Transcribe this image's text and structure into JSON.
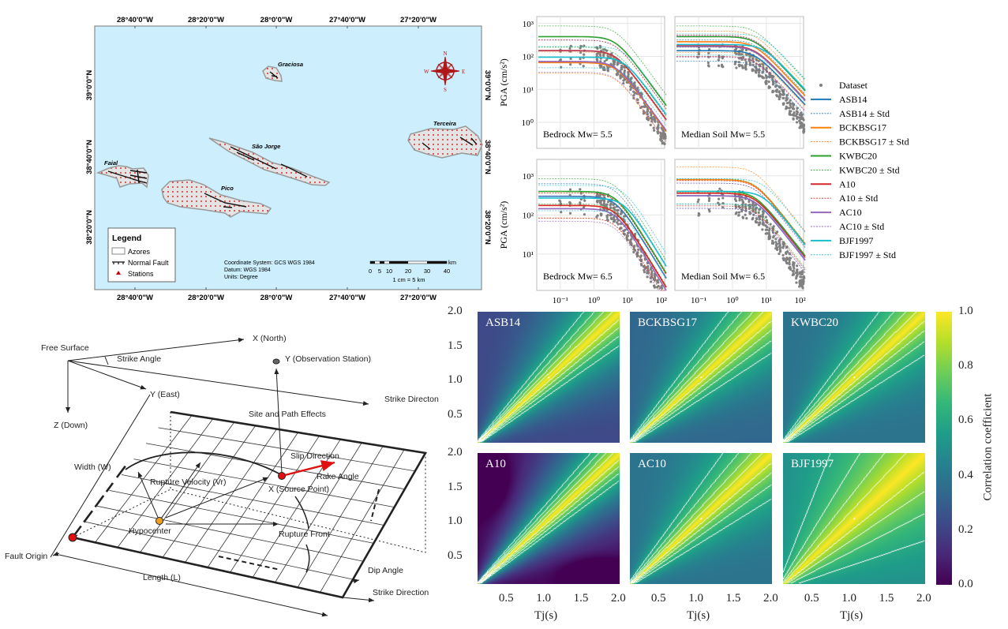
{
  "map": {
    "lon_labels": [
      "28°40'0\"W",
      "28°20'0\"W",
      "28°0'0\"W",
      "27°40'0\"W",
      "27°20'0\"W"
    ],
    "lat_labels": [
      "39°0'0\"N",
      "38°40'0\"N",
      "38°20'0\"N"
    ],
    "islands": [
      "Graciosa",
      "Faial",
      "São Jorge",
      "Pico",
      "Terceira"
    ],
    "compass": {
      "n": "N",
      "s": "S",
      "e": "E",
      "w": "W"
    },
    "legend": {
      "title": "Legend",
      "items": [
        "Azores",
        "Normal Fault",
        "Stations"
      ]
    },
    "info": [
      "Coordinate System: GCS WGS 1984",
      "Datum: WGS 1984",
      "Units: Degree"
    ],
    "scale": {
      "ticks": [
        "0",
        "5",
        "10",
        "20",
        "30",
        "40"
      ],
      "unit": "km",
      "note": "1 cm = 5 km"
    },
    "colors": {
      "sea": "#cdeefc",
      "land": "#e6e6e6",
      "station": "#cc0000"
    }
  },
  "diagram": {
    "labels": {
      "free_surface": "Free Surface",
      "x_north": "X (North)",
      "strike_angle": "Strike Angle",
      "observation": "Y (Observation Station)",
      "y_east": "Y (East)",
      "strike_direction_top": "Strike Directon",
      "z_down": "Z (Down)",
      "site_path": "Site and Path Effects",
      "width": "Width (W)",
      "slip": "Slip Direction",
      "rake": "Rake Angle",
      "rupture_velocity": "Rupture Velocity (Vr)",
      "source_point": "X (Source Point)",
      "hypocenter": "Hypocenter",
      "rupture_front": "Rupture Front",
      "fault_origin": "Fault Origin",
      "length": "Length (L)",
      "dip_angle": "Dip Angle",
      "strike_direction_bottom": "Strike Direction"
    }
  },
  "chart_data": [
    {
      "type": "scatter+line",
      "ylabel": "PGA (cm/s²)",
      "xscale": "log",
      "yscale": "log",
      "x_ticks": [
        "10⁻¹",
        "10⁰",
        "10¹",
        "10²"
      ],
      "legend_placement": "right",
      "legend": [
        "Dataset",
        "ASB14",
        "ASB14 ± Std",
        "BCKBSG17",
        "BCKBSG17 ± Std",
        "KWBC20",
        "KWBC20 ± Std",
        "A10",
        "A10 ± Std",
        "AC10",
        "AC10 ± Std",
        "BJF1997",
        "BJF1997 ± Std"
      ],
      "model_colors": {
        "ASB14": "#1f77b4",
        "BCKBSG17": "#ff7f0e",
        "KWBC20": "#2ca02c",
        "A10": "#d62728",
        "AC10": "#9467bd",
        "BJF1997": "#17becf"
      },
      "dataset_color": "#808080",
      "panels": [
        {
          "label": "Bedrock Mw= 5.5",
          "y_ticks": [
            "10³",
            "10²",
            "10¹",
            "10⁰"
          ],
          "ylim_log10": [
            -0.79,
            3.21
          ],
          "plateau": {
            "ASB14": 150,
            "BCKBSG17": 65,
            "KWBC20": 400,
            "A10": 150,
            "AC10": 70,
            "BJF1997": 95
          }
        },
        {
          "label": "Median Soil Mw= 5.5",
          "y_ticks": [
            "10³",
            "10²",
            "10¹",
            "10⁰"
          ],
          "ylim_log10": [
            -0.79,
            3.21
          ],
          "plateau": {
            "ASB14": 150,
            "BCKBSG17": 280,
            "KWBC20": 400,
            "A10": 210,
            "AC10": 200,
            "BJF1997": 230
          }
        },
        {
          "label": "Bedrock Mw= 6.5",
          "y_ticks": [
            "10³",
            "10²",
            "10¹"
          ],
          "ylim_log10": [
            0.07,
            3.42
          ],
          "plateau": {
            "ASB14": 300,
            "BCKBSG17": 175,
            "KWBC20": 400,
            "A10": 175,
            "AC10": 145,
            "BJF1997": 270
          }
        },
        {
          "label": "Median Soil Mw= 6.5",
          "y_ticks": [
            "10³",
            "10²",
            "10¹"
          ],
          "ylim_log10": [
            0.07,
            3.42
          ],
          "plateau": {
            "ASB14": 310,
            "BCKBSG17": 800,
            "KWBC20": 400,
            "A10": 360,
            "AC10": 310,
            "BJF1997": 400
          }
        }
      ]
    },
    {
      "type": "heatmap",
      "xlabel": "Tj(s)",
      "x_ticks": [
        "0.5",
        "1.0",
        "1.5",
        "2.0"
      ],
      "y_ticks": [
        "2.0",
        "1.5",
        "1.0",
        "0.5"
      ],
      "xlim": [
        0.1,
        2.0
      ],
      "ylim": [
        0.1,
        2.0
      ],
      "contour_levels": [
        0.6,
        0.7,
        0.8,
        0.9
      ],
      "colormap": "viridis",
      "colorbar": {
        "label": "Correlation coefficient",
        "ticks": [
          "1.0",
          "0.8",
          "0.6",
          "0.4",
          "0.2",
          "0.0"
        ],
        "range": [
          0,
          1
        ]
      },
      "panels": [
        {
          "title": "ASB14",
          "floor": 0.22,
          "decay": 2.6
        },
        {
          "title": "BCKBSG17",
          "floor": 0.33,
          "decay": 2.6
        },
        {
          "title": "KWBC20",
          "floor": 0.38,
          "decay": 2.8
        },
        {
          "title": "A10",
          "floor": 0.02,
          "decay": 2.4
        },
        {
          "title": "AC10",
          "floor": 0.38,
          "decay": 2.6
        },
        {
          "title": "BJF1997",
          "floor": 0.5,
          "decay": 1.6
        }
      ]
    }
  ]
}
